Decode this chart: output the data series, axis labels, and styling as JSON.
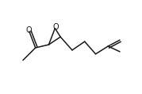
{
  "background_color": "#ffffff",
  "line_color": "#1a1a1a",
  "line_width": 1.1,
  "figsize": [
    1.79,
    1.18
  ],
  "dpi": 100,
  "o_carbonyl_label": "O",
  "o_epoxide_label": "O",
  "o_fontsize": 7.0
}
